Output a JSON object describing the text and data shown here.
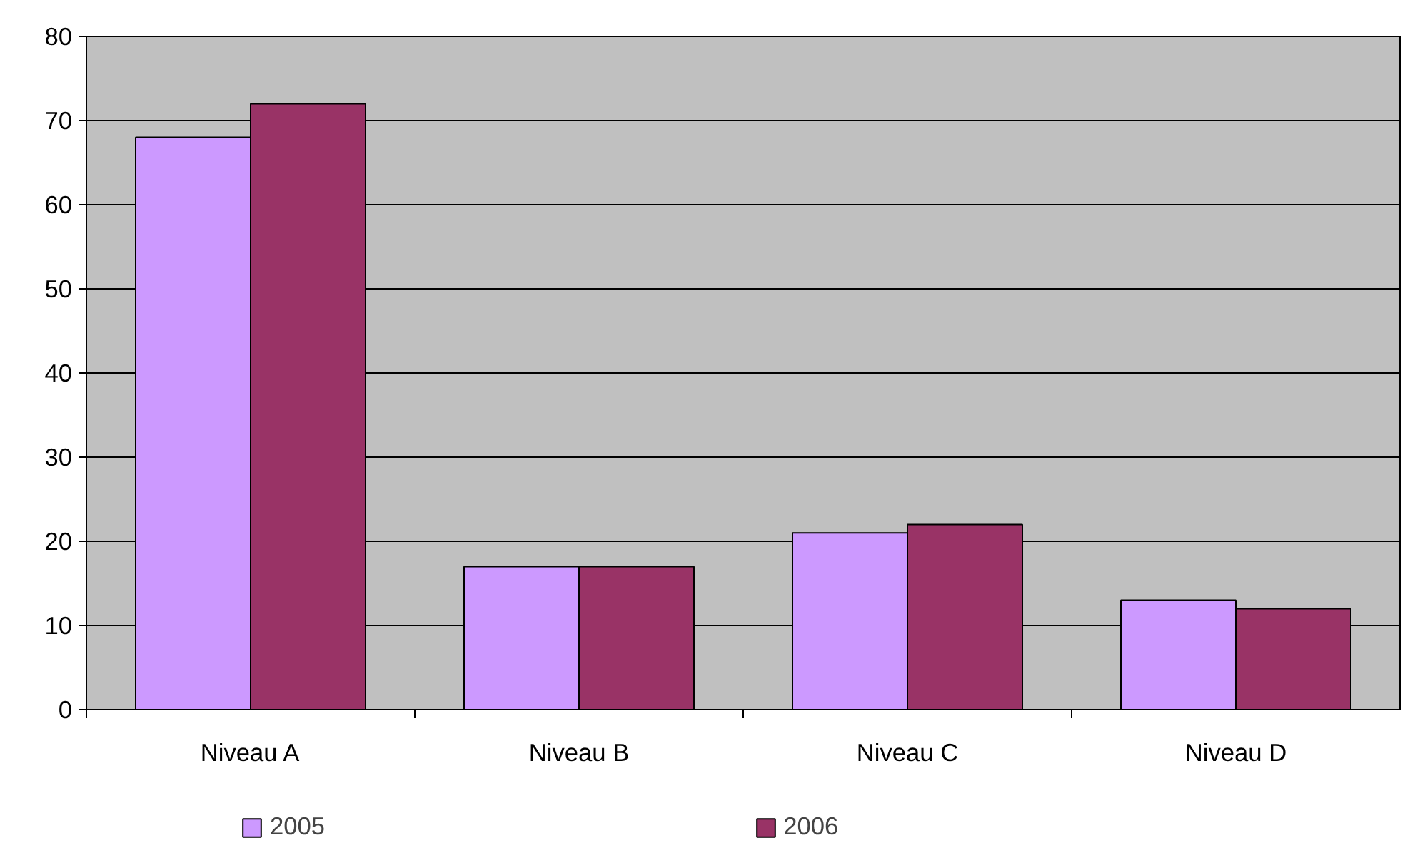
{
  "chart_data": {
    "type": "bar",
    "categories": [
      "Niveau A",
      "Niveau B",
      "Niveau C",
      "Niveau D"
    ],
    "series": [
      {
        "name": "2005",
        "color": "#cc99ff",
        "values": [
          68,
          17,
          21,
          13
        ]
      },
      {
        "name": "2006",
        "color": "#993366",
        "values": [
          72,
          17,
          22,
          12
        ]
      }
    ],
    "ylim": [
      0,
      80
    ],
    "yticks": [
      0,
      10,
      20,
      30,
      40,
      50,
      60,
      70,
      80
    ],
    "grid": "y",
    "legend": "bottom"
  }
}
